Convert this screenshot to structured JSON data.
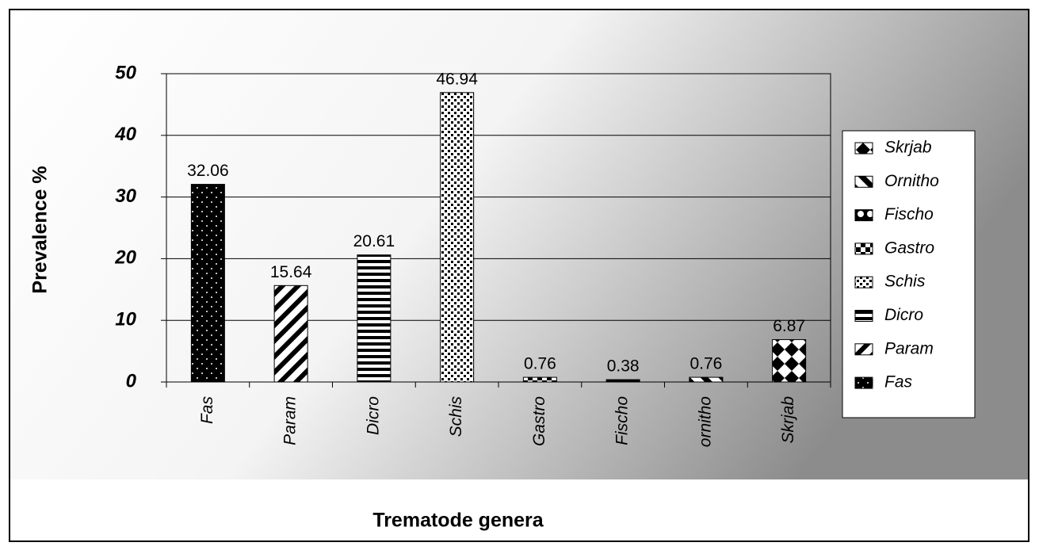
{
  "chart_data": {
    "type": "bar",
    "x_label": "Trematode genera",
    "y_label": "Prevalence %",
    "categories": [
      "Fas",
      "Param",
      "Dicro",
      "Schis",
      "Gastro",
      "Fischo",
      "ornitho",
      "Skrjab"
    ],
    "values": [
      32.06,
      15.64,
      20.61,
      46.94,
      0.76,
      0.38,
      0.76,
      6.87
    ],
    "legend": [
      "Skrjab",
      "Ornitho",
      "Fischo",
      "Gastro",
      "Schis",
      "Dicro",
      "Param",
      "Fas"
    ],
    "ylim": [
      0,
      50
    ],
    "yticks": [
      0,
      10,
      20,
      30,
      40,
      50
    ],
    "grid": true
  }
}
